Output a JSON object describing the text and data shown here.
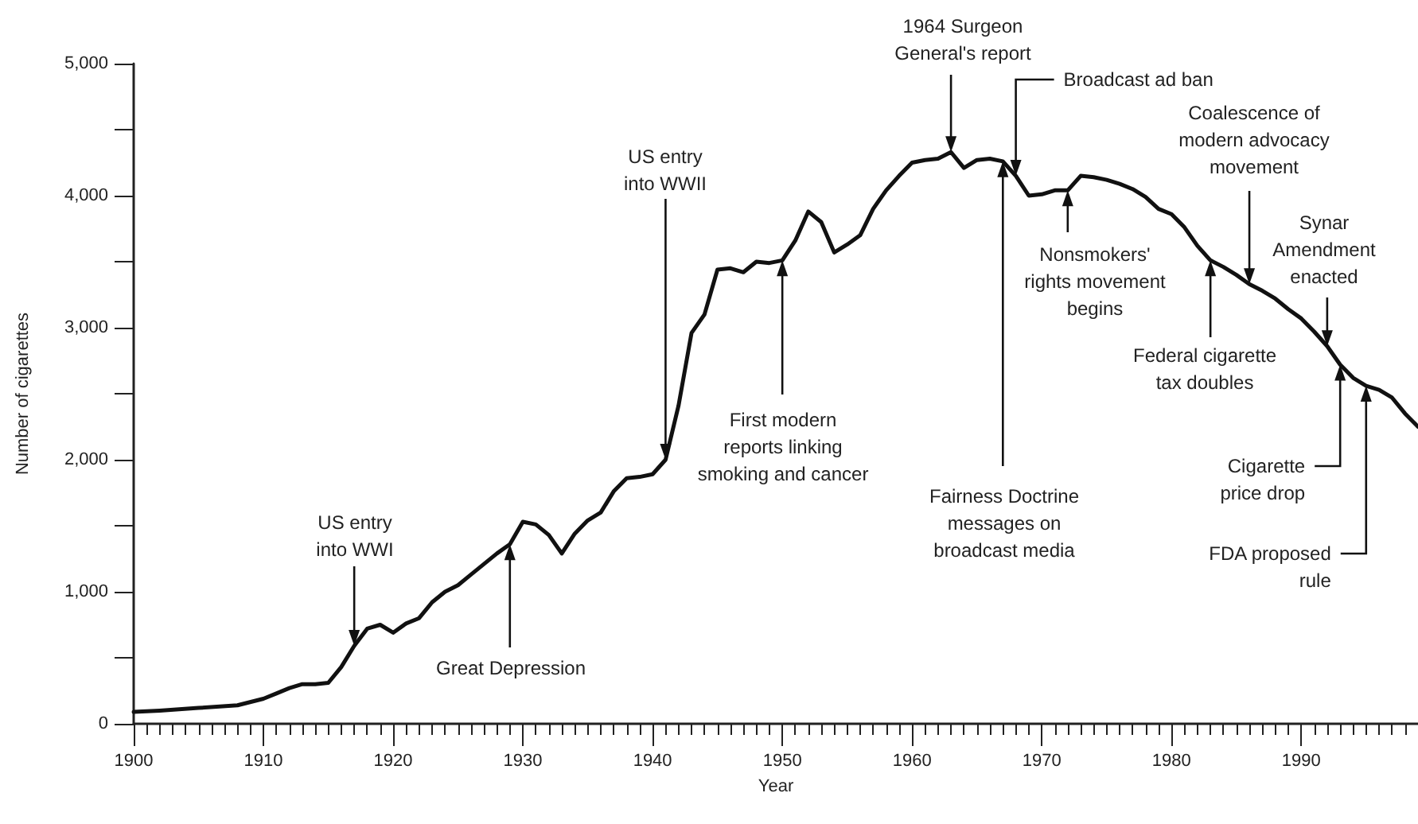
{
  "chart_data": {
    "type": "line",
    "xlabel": "Year",
    "ylabel": "Number of cigarettes",
    "x": [
      1900,
      1902,
      1905,
      1908,
      1910,
      1911,
      1912,
      1913,
      1914,
      1915,
      1916,
      1917,
      1918,
      1919,
      1920,
      1921,
      1922,
      1923,
      1924,
      1925,
      1926,
      1927,
      1928,
      1929,
      1930,
      1931,
      1932,
      1933,
      1934,
      1935,
      1936,
      1937,
      1938,
      1939,
      1940,
      1941,
      1942,
      1943,
      1944,
      1945,
      1946,
      1947,
      1948,
      1949,
      1950,
      1951,
      1952,
      1953,
      1954,
      1955,
      1956,
      1957,
      1958,
      1959,
      1960,
      1961,
      1962,
      1963,
      1964,
      1965,
      1966,
      1967,
      1968,
      1969,
      1970,
      1971,
      1972,
      1973,
      1974,
      1975,
      1976,
      1977,
      1978,
      1979,
      1980,
      1981,
      1982,
      1983,
      1984,
      1985,
      1986,
      1987,
      1988,
      1989,
      1990,
      1991,
      1992,
      1993,
      1994,
      1995,
      1996,
      1997,
      1998,
      1999
    ],
    "values": [
      90,
      100,
      120,
      140,
      190,
      230,
      270,
      300,
      300,
      310,
      430,
      590,
      720,
      750,
      690,
      760,
      800,
      920,
      1000,
      1050,
      1130,
      1210,
      1290,
      1360,
      1530,
      1510,
      1430,
      1290,
      1440,
      1540,
      1600,
      1760,
      1860,
      1870,
      1890,
      2000,
      2410,
      2960,
      3100,
      3440,
      3450,
      3420,
      3500,
      3490,
      3510,
      3660,
      3880,
      3800,
      3570,
      3630,
      3700,
      3900,
      4040,
      4150,
      4250,
      4270,
      4280,
      4330,
      4210,
      4270,
      4280,
      4260,
      4150,
      4000,
      4010,
      4040,
      4040,
      4150,
      4140,
      4120,
      4090,
      4050,
      3990,
      3900,
      3860,
      3760,
      3620,
      3510,
      3460,
      3400,
      3330,
      3280,
      3220,
      3140,
      3070,
      2970,
      2860,
      2720,
      2620,
      2560,
      2530,
      2470,
      2350,
      2250
    ],
    "color": "#111111",
    "line_style": "solid",
    "marker": "none",
    "grid": false,
    "xlim": [
      1900,
      1999
    ],
    "xticks": [
      1900,
      {
        "value": 1901,
        "label": null
      },
      {
        "value": 1902,
        "label": null
      },
      {
        "value": 1903,
        "label": null
      },
      {
        "value": 1904,
        "label": null
      },
      {
        "value": 1905,
        "label": null
      },
      {
        "value": 1906,
        "label": null
      },
      {
        "value": 1907,
        "label": null
      },
      {
        "value": 1908,
        "label": null
      },
      {
        "value": 1909,
        "label": null
      },
      1910,
      {
        "value": 1911,
        "label": null
      },
      {
        "value": 1912,
        "label": null
      },
      {
        "value": 1913,
        "label": null
      },
      {
        "value": 1914,
        "label": null
      },
      {
        "value": 1915,
        "label": null
      },
      {
        "value": 1916,
        "label": null
      },
      {
        "value": 1917,
        "label": null
      },
      {
        "value": 1918,
        "label": null
      },
      {
        "value": 1919,
        "label": null
      },
      1920,
      {
        "value": 1921,
        "label": null
      },
      {
        "value": 1922,
        "label": null
      },
      {
        "value": 1923,
        "label": null
      },
      {
        "value": 1924,
        "label": null
      },
      {
        "value": 1925,
        "label": null
      },
      {
        "value": 1926,
        "label": null
      },
      {
        "value": 1927,
        "label": null
      },
      {
        "value": 1928,
        "label": null
      },
      {
        "value": 1929,
        "label": null
      },
      1930,
      {
        "value": 1931,
        "label": null
      },
      {
        "value": 1932,
        "label": null
      },
      {
        "value": 1933,
        "label": null
      },
      {
        "value": 1934,
        "label": null
      },
      {
        "value": 1935,
        "label": null
      },
      {
        "value": 1936,
        "label": null
      },
      {
        "value": 1937,
        "label": null
      },
      {
        "value": 1938,
        "label": null
      },
      {
        "value": 1939,
        "label": null
      },
      1940,
      {
        "value": 1941,
        "label": null
      },
      {
        "value": 1942,
        "label": null
      },
      {
        "value": 1943,
        "label": null
      },
      {
        "value": 1944,
        "label": null
      },
      {
        "value": 1945,
        "label": null
      },
      {
        "value": 1946,
        "label": null
      },
      {
        "value": 1947,
        "label": null
      },
      {
        "value": 1948,
        "label": null
      },
      {
        "value": 1949,
        "label": null
      },
      1950,
      {
        "value": 1951,
        "label": null
      },
      {
        "value": 1952,
        "label": null
      },
      {
        "value": 1953,
        "label": null
      },
      {
        "value": 1954,
        "label": null
      },
      {
        "value": 1955,
        "label": null
      },
      {
        "value": 1956,
        "label": null
      },
      {
        "value": 1957,
        "label": null
      },
      {
        "value": 1958,
        "label": null
      },
      {
        "value": 1959,
        "label": null
      },
      1960,
      {
        "value": 1961,
        "label": null
      },
      {
        "value": 1962,
        "label": null
      },
      {
        "value": 1963,
        "label": null
      },
      {
        "value": 1964,
        "label": null
      },
      {
        "value": 1965,
        "label": null
      },
      {
        "value": 1966,
        "label": null
      },
      {
        "value": 1967,
        "label": null
      },
      {
        "value": 1968,
        "label": null
      },
      {
        "value": 1969,
        "label": null
      },
      1970,
      {
        "value": 1971,
        "label": null
      },
      {
        "value": 1972,
        "label": null
      },
      {
        "value": 1973,
        "label": null
      },
      {
        "value": 1974,
        "label": null
      },
      {
        "value": 1975,
        "label": null
      },
      {
        "value": 1976,
        "label": null
      },
      {
        "value": 1977,
        "label": null
      },
      {
        "value": 1978,
        "label": null
      },
      {
        "value": 1979,
        "label": null
      },
      1980,
      {
        "value": 1981,
        "label": null
      },
      {
        "value": 1982,
        "label": null
      },
      {
        "value": 1983,
        "label": null
      },
      {
        "value": 1984,
        "label": null
      },
      {
        "value": 1985,
        "label": null
      },
      {
        "value": 1986,
        "label": null
      },
      {
        "value": 1987,
        "label": null
      },
      {
        "value": 1988,
        "label": null
      },
      {
        "value": 1989,
        "label": null
      },
      1990,
      {
        "value": 1991,
        "label": null
      },
      {
        "value": 1992,
        "label": null
      },
      {
        "value": 1993,
        "label": null
      },
      {
        "value": 1994,
        "label": null
      },
      {
        "value": 1995,
        "label": null
      },
      {
        "value": 1996,
        "label": null
      },
      {
        "value": 1997,
        "label": null
      },
      {
        "value": 1998,
        "label": null
      }
    ],
    "ylim": [
      0,
      5000
    ],
    "yticks": [
      {
        "value": 0,
        "label": "0"
      },
      {
        "value": 500,
        "label": null
      },
      {
        "value": 1000,
        "label": "1,000"
      },
      {
        "value": 1500,
        "label": null
      },
      {
        "value": 2000,
        "label": "2,000"
      },
      {
        "value": 2500,
        "label": null
      },
      {
        "value": 3000,
        "label": "3,000"
      },
      {
        "value": 3500,
        "label": null
      },
      {
        "value": 4000,
        "label": "4,000"
      },
      {
        "value": 4500,
        "label": null
      },
      {
        "value": 5000,
        "label": "5,000"
      }
    ],
    "annotations": [
      {
        "text": "US entry\ninto WWI",
        "x": 1917,
        "y": 590
      },
      {
        "text": "Great Depression",
        "x": 1929,
        "y": 1360
      },
      {
        "text": "US entry\ninto WWII",
        "x": 1941,
        "y": 2000
      },
      {
        "text": "First modern\nreports linking\nsmoking and cancer",
        "x": 1950,
        "y": 3510
      },
      {
        "text": "1964 Surgeon\nGeneral's report",
        "x": 1963,
        "y": 4330
      },
      {
        "text": "Broadcast ad ban",
        "x": 1968,
        "y": 4150
      },
      {
        "text": "Fairness Doctrine\nmessages on\nbroadcast media",
        "x": 1967,
        "y": 4260
      },
      {
        "text": "Nonsmokers'\nrights movement\nbegins",
        "x": 1972,
        "y": 4040
      },
      {
        "text": "Coalescence of\nmodern advocacy\nmovement",
        "x": 1986,
        "y": 3330
      },
      {
        "text": "Federal cigarette\ntax doubles",
        "x": 1983,
        "y": 3510
      },
      {
        "text": "Synar\nAmendment\nenacted",
        "x": 1992,
        "y": 2860
      },
      {
        "text": "Cigarette\nprice drop",
        "x": 1993,
        "y": 2720
      },
      {
        "text": "FDA proposed\nrule",
        "x": 1995,
        "y": 2560
      }
    ]
  }
}
